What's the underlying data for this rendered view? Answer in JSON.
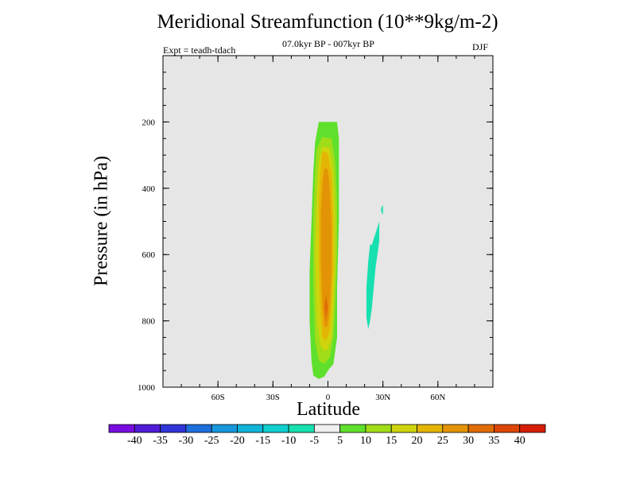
{
  "chart_data": {
    "type": "contour",
    "title": "Meridional Streamfunction (10**9kg/m-2)",
    "subtitle": "07.0kyr BP - 007kyr BP",
    "experiment": "Expt = teadh-tdach",
    "season": "DJF",
    "xlabel": "Latitude",
    "ylabel": "Pressure (in hPa)",
    "xlim": [
      -90,
      90
    ],
    "ylim": [
      0,
      1000
    ],
    "y_inverted": true,
    "x_ticks": [
      {
        "value": -60,
        "label": "60S"
      },
      {
        "value": -30,
        "label": "30S"
      },
      {
        "value": 0,
        "label": "0"
      },
      {
        "value": 30,
        "label": "30N"
      },
      {
        "value": 60,
        "label": "60N"
      }
    ],
    "y_ticks": [
      {
        "value": 200,
        "label": "200"
      },
      {
        "value": 400,
        "label": "400"
      },
      {
        "value": 600,
        "label": "600"
      },
      {
        "value": 800,
        "label": "800"
      },
      {
        "value": 1000,
        "label": "1000"
      }
    ],
    "colorbar": {
      "levels": [
        "-40",
        "-35",
        "-30",
        "-25",
        "-20",
        "-15",
        "-10",
        "-5",
        "5",
        "10",
        "15",
        "20",
        "25",
        "30",
        "35",
        "40"
      ],
      "colors": [
        "#7a0ce0",
        "#4f1cd8",
        "#2f35d6",
        "#1f6fdc",
        "#1797dc",
        "#0fb4d8",
        "#0fcfcf",
        "#17e0b0",
        "#efefef",
        "#5fe02c",
        "#a0dd18",
        "#cfd40c",
        "#e5b506",
        "#e39406",
        "#e06c06",
        "#dc4606",
        "#d61e06"
      ]
    },
    "features": [
      {
        "name": "positive-cell-equatorial",
        "bands": [
          {
            "level": "5 to 10",
            "color": "#5fe02c",
            "lat": [
              -5,
              5,
              6,
              6,
              6,
              5,
              5,
              3,
              0,
              -2,
              -5,
              -8,
              -9,
              -10,
              -10,
              -9,
              -8,
              -7,
              -5
            ],
            "p": [
              200,
              200,
              250,
              350,
              500,
              700,
              850,
              930,
              950,
              968,
              975,
              965,
              920,
              800,
              650,
              500,
              350,
              260,
              200
            ]
          },
          {
            "level": "10 to 15",
            "color": "#a0dd18",
            "lat": [
              -3,
              2,
              4,
              5,
              5,
              4,
              3,
              1,
              -2,
              -5,
              -7,
              -8,
              -8,
              -7,
              -6,
              -3
            ],
            "p": [
              245,
              250,
              320,
              450,
              600,
              750,
              850,
              910,
              930,
              920,
              860,
              700,
              500,
              350,
              280,
              245
            ]
          },
          {
            "level": "15 to 20",
            "color": "#cfd40c",
            "lat": [
              -2,
              1,
              3,
              4,
              4,
              3,
              2,
              0,
              -2,
              -4,
              -6,
              -7,
              -6,
              -5,
              -3
            ],
            "p": [
              275,
              280,
              350,
              480,
              620,
              760,
              850,
              885,
              890,
              875,
              800,
              600,
              400,
              320,
              275
            ]
          },
          {
            "level": "20 to 25",
            "color": "#e5b506",
            "lat": [
              -2,
              0,
              2,
              3,
              3,
              2,
              1,
              -1,
              -3,
              -4,
              -5,
              -5,
              -4,
              -3
            ],
            "p": [
              290,
              295,
              360,
              500,
              650,
              760,
              830,
              860,
              850,
              790,
              620,
              450,
              340,
              290
            ]
          },
          {
            "level": "25 to 30",
            "color": "#e39406",
            "lat": [
              -1,
              0,
              1,
              2,
              2,
              1,
              0,
              -2,
              -3,
              -4,
              -4,
              -3,
              -2
            ],
            "p": [
              340,
              345,
              400,
              520,
              650,
              760,
              815,
              820,
              760,
              620,
              480,
              380,
              340
            ]
          },
          {
            "level": "30 to 35",
            "color": "#e06c06",
            "lat": [
              -1,
              0,
              -1,
              -2,
              -1
            ],
            "p": [
              720,
              760,
              800,
              760,
              720
            ]
          }
        ]
      },
      {
        "name": "negative-cell-30N",
        "bands": [
          {
            "level": "-10 to -5",
            "color": "#17e0b0",
            "lat": [
              24,
              28,
              28,
              26,
              25,
              24,
              23,
              22,
              21,
              21,
              22,
              23
            ],
            "p": [
              570,
              500,
              560,
              640,
              700,
              760,
              800,
              825,
              790,
              700,
              620,
              570
            ]
          },
          {
            "level": "-10 to -5",
            "color": "#17e0b0",
            "lat": [
              29,
              30,
              30,
              29
            ],
            "p": [
              460,
              450,
              480,
              470
            ]
          }
        ]
      }
    ]
  }
}
